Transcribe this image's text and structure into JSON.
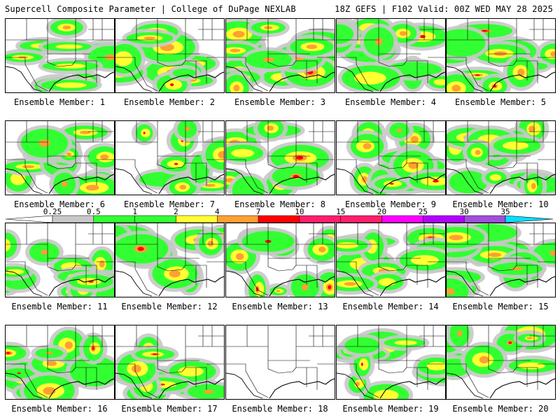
{
  "header": {
    "title": "Supercell Composite Parameter | College of DuPage NEXLAB",
    "valid": "18Z GEFS | F102 Valid: 00Z WED MAY 28 2025"
  },
  "colors": {
    "border": "#000000",
    "scale": [
      "#c8c8c8",
      "#32ff32",
      "#ffff32",
      "#ffa032",
      "#ff0000",
      "#ff1e6e",
      "#ff00ff",
      "#b400ff",
      "#a050dc",
      "#00e1ff"
    ]
  },
  "scale": {
    "labels": [
      "0.25",
      "0.5",
      "1",
      "2",
      "4",
      "7",
      "10",
      "15",
      "20",
      "25",
      "30",
      "35"
    ]
  },
  "members": [
    {
      "label": "Ensemble Member: 1"
    },
    {
      "label": "Ensemble Member: 2"
    },
    {
      "label": "Ensemble Member: 3"
    },
    {
      "label": "Ensemble Member: 4"
    },
    {
      "label": "Ensemble Member: 5"
    },
    {
      "label": "Ensemble Member: 6"
    },
    {
      "label": "Ensemble Member: 7"
    },
    {
      "label": "Ensemble Member: 8"
    },
    {
      "label": "Ensemble Member: 9"
    },
    {
      "label": "Ensemble Member: 10"
    },
    {
      "label": "Ensemble Member: 11"
    },
    {
      "label": "Ensemble Member: 12"
    },
    {
      "label": "Ensemble Member: 13"
    },
    {
      "label": "Ensemble Member: 14"
    },
    {
      "label": "Ensemble Member: 15"
    },
    {
      "label": "Ensemble Member: 16"
    },
    {
      "label": "Ensemble Member: 17"
    },
    {
      "label": "Ensemble Member: 18"
    },
    {
      "label": "Ensemble Member: 19"
    },
    {
      "label": "Ensemble Member: 20"
    }
  ]
}
